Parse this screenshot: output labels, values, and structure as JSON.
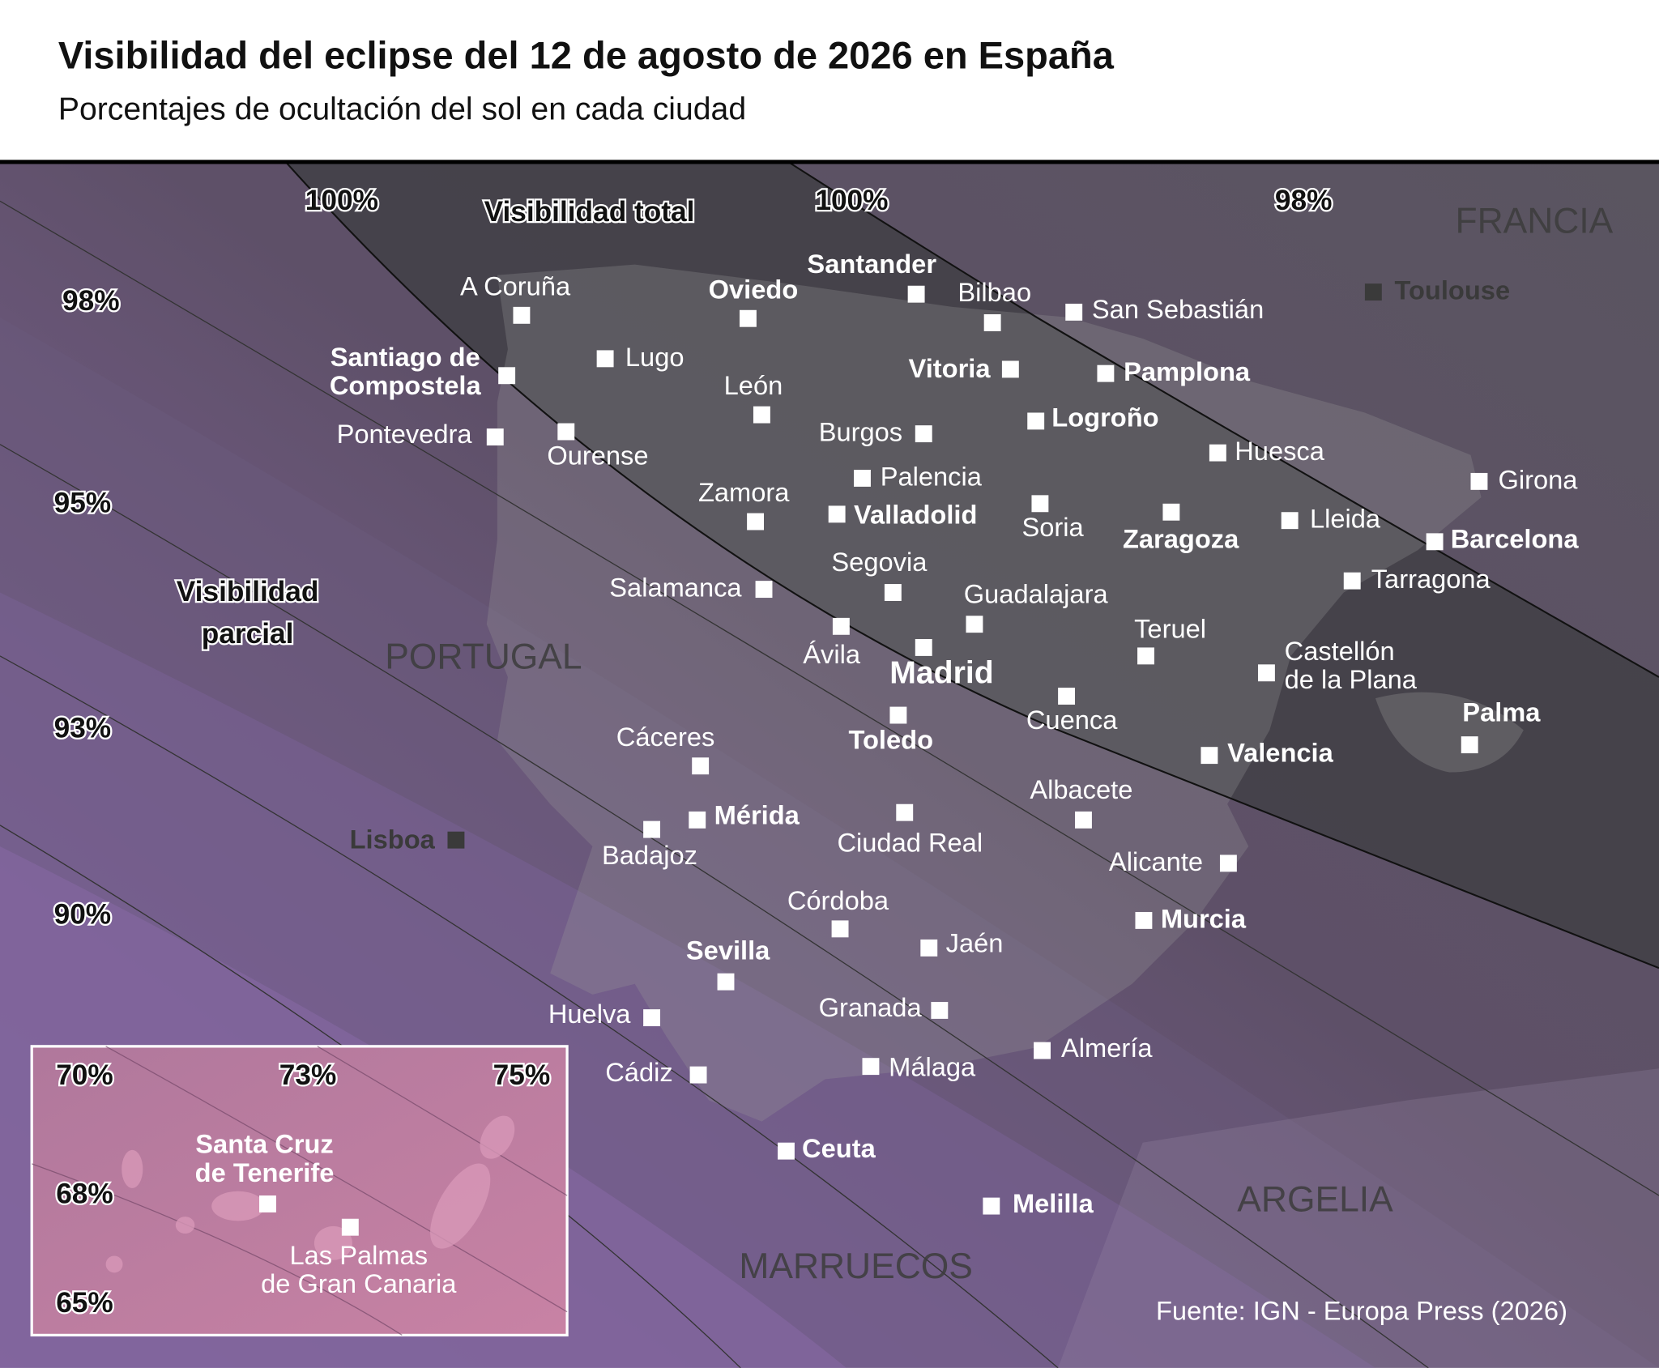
{
  "header": {
    "title": "Visibilidad del eclipse del 12 de agosto de 2026 en España",
    "subtitle": "Porcentajes de ocultación del sol en cada ciudad"
  },
  "map": {
    "zone_labels": [
      {
        "lines": [
          "Visibilidad total"
        ]
      },
      {
        "lines": [
          "Visibilidad",
          "parcial"
        ]
      }
    ],
    "contour_labels": [
      "100%",
      "100%",
      "98%",
      "98%",
      "95%",
      "93%",
      "90%"
    ],
    "countries": [
      "FRANCIA",
      "PORTUGAL",
      "ARGELIA",
      "MARRUECOS"
    ],
    "cities": [
      {
        "lines": [
          "A Coruña"
        ]
      },
      {
        "lines": [
          "Lugo"
        ]
      },
      {
        "lines": [
          "Oviedo"
        ],
        "bold": true
      },
      {
        "lines": [
          "Santander"
        ],
        "bold": true
      },
      {
        "lines": [
          "Bilbao"
        ]
      },
      {
        "lines": [
          "San Sebastián"
        ]
      },
      {
        "lines": [
          "Toulouse"
        ],
        "foreign": true
      },
      {
        "lines": [
          "Santiago de",
          "Compostela"
        ],
        "bold": true
      },
      {
        "lines": [
          "Pontevedra"
        ]
      },
      {
        "lines": [
          "Ourense"
        ]
      },
      {
        "lines": [
          "León"
        ]
      },
      {
        "lines": [
          "Vitoria"
        ],
        "bold": true
      },
      {
        "lines": [
          "Pamplona"
        ],
        "bold": true
      },
      {
        "lines": [
          "Logroño"
        ],
        "bold": true
      },
      {
        "lines": [
          "Burgos"
        ]
      },
      {
        "lines": [
          "Huesca"
        ]
      },
      {
        "lines": [
          "Palencia"
        ]
      },
      {
        "lines": [
          "Girona"
        ]
      },
      {
        "lines": [
          "Zamora"
        ]
      },
      {
        "lines": [
          "Valladolid"
        ],
        "bold": true
      },
      {
        "lines": [
          "Soria"
        ]
      },
      {
        "lines": [
          "Zaragoza"
        ],
        "bold": true
      },
      {
        "lines": [
          "Lleida"
        ]
      },
      {
        "lines": [
          "Barcelona"
        ],
        "bold": true
      },
      {
        "lines": [
          "Tarragona"
        ]
      },
      {
        "lines": [
          "Segovia"
        ]
      },
      {
        "lines": [
          "Salamanca"
        ]
      },
      {
        "lines": [
          "Guadalajara"
        ]
      },
      {
        "lines": [
          "Teruel"
        ]
      },
      {
        "lines": [
          "Ávila"
        ]
      },
      {
        "lines": [
          "Madrid"
        ],
        "bold": true,
        "capital": true
      },
      {
        "lines": [
          "Castellón",
          "de la Plana"
        ]
      },
      {
        "lines": [
          "Cuenca"
        ]
      },
      {
        "lines": [
          "Palma"
        ],
        "bold": true
      },
      {
        "lines": [
          "Toledo"
        ],
        "bold": true
      },
      {
        "lines": [
          "Valencia"
        ],
        "bold": true
      },
      {
        "lines": [
          "Cáceres"
        ]
      },
      {
        "lines": [
          "Albacete"
        ]
      },
      {
        "lines": [
          "Mérida"
        ],
        "bold": true
      },
      {
        "lines": [
          "Badajoz"
        ]
      },
      {
        "lines": [
          "Ciudad Real"
        ]
      },
      {
        "lines": [
          "Lisboa"
        ],
        "foreign": true
      },
      {
        "lines": [
          "Alicante"
        ]
      },
      {
        "lines": [
          "Córdoba"
        ]
      },
      {
        "lines": [
          "Murcia"
        ],
        "bold": true
      },
      {
        "lines": [
          "Jaén"
        ]
      },
      {
        "lines": [
          "Sevilla"
        ],
        "bold": true
      },
      {
        "lines": [
          "Granada"
        ]
      },
      {
        "lines": [
          "Huelva"
        ]
      },
      {
        "lines": [
          "Almería"
        ]
      },
      {
        "lines": [
          "Cádiz"
        ]
      },
      {
        "lines": [
          "Málaga"
        ]
      },
      {
        "lines": [
          "Ceuta"
        ],
        "bold": true
      },
      {
        "lines": [
          "Melilla"
        ],
        "bold": true
      }
    ]
  },
  "inset": {
    "contour_labels": [
      "70%",
      "73%",
      "75%",
      "68%",
      "65%"
    ],
    "cities": [
      {
        "lines": [
          "Santa Cruz",
          "de Tenerife"
        ],
        "bold": true
      },
      {
        "lines": [
          "Las Palmas",
          "de Gran Canaria"
        ]
      }
    ]
  },
  "source": "Fuente: IGN - Europa Press (2026)"
}
